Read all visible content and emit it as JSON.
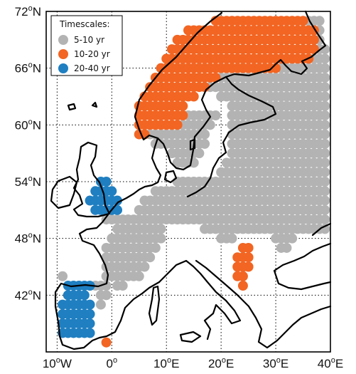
{
  "map": {
    "lat_labels": [
      {
        "value": 72,
        "deg": "72",
        "hemi": "N"
      },
      {
        "value": 66,
        "deg": "66",
        "hemi": "N"
      },
      {
        "value": 60,
        "deg": "60",
        "hemi": "N"
      },
      {
        "value": 54,
        "deg": "54",
        "hemi": "N"
      },
      {
        "value": 48,
        "deg": "48",
        "hemi": "N"
      },
      {
        "value": 42,
        "deg": "42",
        "hemi": "N"
      }
    ],
    "lon_labels": [
      {
        "value": -10,
        "deg": "10",
        "hemi": "W"
      },
      {
        "value": 0,
        "deg": "0",
        "hemi": ""
      },
      {
        "value": 10,
        "deg": "10",
        "hemi": "E"
      },
      {
        "value": 20,
        "deg": "20",
        "hemi": "E"
      },
      {
        "value": 30,
        "deg": "30",
        "hemi": "E"
      },
      {
        "value": 40,
        "deg": "40",
        "hemi": "E"
      }
    ],
    "lon_range": [
      -12,
      40
    ],
    "lat_range": [
      36,
      72
    ],
    "grid": "dotted",
    "legend": {
      "title": "Timescales:",
      "placement": "top-left",
      "entries": [
        {
          "label": "5-10 yr",
          "color": "#b3b3b3"
        },
        {
          "label": "10-20 yr",
          "color": "#f26522"
        },
        {
          "label": "20-40 yr",
          "color": "#1f7fc1"
        }
      ]
    },
    "colors": {
      "gray": "#b3b3b3",
      "orange": "#f26522",
      "blue": "#1f7fc1",
      "coast": "#000000"
    },
    "dot_spacing": {
      "dlon": 1,
      "dlat": 1
    },
    "regions": {
      "orange": [
        [
          19,
          35,
          71,
          71
        ],
        [
          14,
          37,
          70,
          70
        ],
        [
          12,
          37,
          69,
          69
        ],
        [
          11,
          37,
          68,
          68
        ],
        [
          10,
          36,
          67,
          67
        ],
        [
          9,
          30,
          66,
          66
        ],
        [
          8,
          19,
          65,
          65
        ],
        [
          7,
          17,
          64,
          64
        ],
        [
          6,
          15,
          63,
          63
        ],
        [
          5,
          13,
          62,
          62
        ],
        [
          5,
          13,
          61,
          61
        ],
        [
          5,
          12,
          60,
          60
        ],
        [
          5,
          6,
          59,
          59
        ],
        [
          24,
          25,
          47,
          47
        ],
        [
          23,
          25,
          46,
          46
        ],
        [
          23,
          25,
          45,
          45
        ],
        [
          23,
          24,
          44,
          44
        ],
        [
          24,
          24,
          43,
          43
        ],
        [
          -1,
          -1,
          37,
          37
        ]
      ],
      "gray": [
        [
          36,
          38,
          71,
          71
        ],
        [
          37,
          38,
          70,
          70
        ],
        [
          37,
          38,
          69,
          69
        ],
        [
          37,
          39,
          68,
          68
        ],
        [
          36,
          39,
          67,
          67
        ],
        [
          31,
          39,
          66,
          66
        ],
        [
          20,
          39,
          65,
          65
        ],
        [
          18,
          39,
          64,
          64
        ],
        [
          20,
          39,
          63,
          63
        ],
        [
          22,
          39,
          62,
          62
        ],
        [
          22,
          39,
          61,
          61
        ],
        [
          13,
          19,
          61,
          61
        ],
        [
          13,
          18,
          60,
          60
        ],
        [
          22,
          39,
          60,
          60
        ],
        [
          7,
          17,
          59,
          59
        ],
        [
          22,
          39,
          59,
          59
        ],
        [
          8,
          17,
          58,
          58
        ],
        [
          22,
          39,
          58,
          58
        ],
        [
          11,
          16,
          57,
          57
        ],
        [
          22,
          39,
          57,
          57
        ],
        [
          12,
          15,
          56,
          56
        ],
        [
          21,
          39,
          56,
          56
        ],
        [
          20,
          39,
          55,
          55
        ],
        [
          12,
          39,
          54,
          54
        ],
        [
          8,
          39,
          53,
          53
        ],
        [
          6,
          39,
          52,
          52
        ],
        [
          5,
          39,
          51,
          51
        ],
        [
          3,
          39,
          50,
          50
        ],
        [
          -1,
          3,
          50,
          50
        ],
        [
          1,
          9,
          49,
          49
        ],
        [
          17,
          39,
          49,
          49
        ],
        [
          0,
          9,
          48,
          48
        ],
        [
          20,
          22,
          48,
          48
        ],
        [
          30,
          33,
          48,
          48
        ],
        [
          -1,
          8,
          47,
          47
        ],
        [
          31,
          32,
          47,
          47
        ],
        [
          -1,
          7,
          46,
          46
        ],
        [
          -1,
          6,
          45,
          45
        ],
        [
          -1,
          5,
          44,
          44
        ],
        [
          1,
          2,
          43,
          43
        ],
        [
          -3,
          -1,
          43,
          43
        ],
        [
          -2,
          -1,
          42,
          42
        ],
        [
          -2,
          -2,
          41,
          41
        ],
        [
          -9,
          -9,
          44,
          44
        ]
      ],
      "blue": [
        [
          -2,
          -1,
          54,
          54
        ],
        [
          -3,
          0,
          53,
          53
        ],
        [
          -4,
          1,
          52,
          52
        ],
        [
          -3,
          1,
          51,
          51
        ],
        [
          -8,
          -4,
          43,
          43
        ],
        [
          -8,
          -5,
          42,
          42
        ],
        [
          -9,
          -4,
          41,
          41
        ],
        [
          -9,
          -4,
          40,
          40
        ],
        [
          -9,
          -4,
          39,
          39
        ],
        [
          -9,
          -4,
          38,
          38
        ]
      ]
    }
  }
}
